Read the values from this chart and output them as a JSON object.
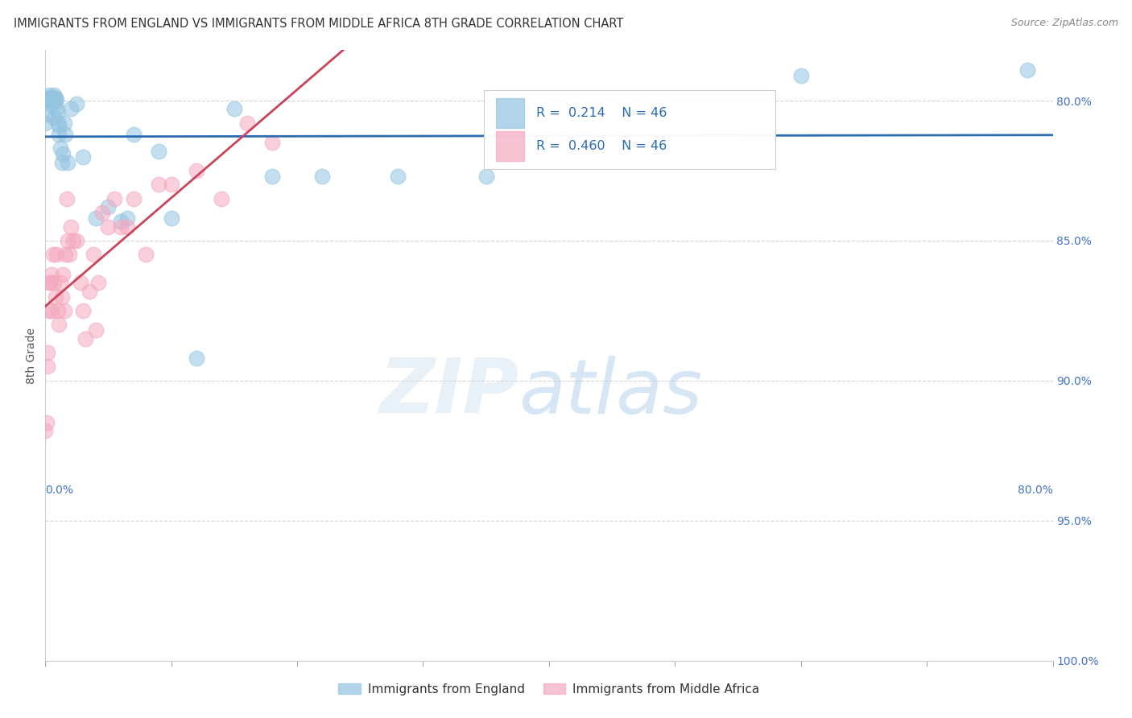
{
  "title": "IMMIGRANTS FROM ENGLAND VS IMMIGRANTS FROM MIDDLE AFRICA 8TH GRADE CORRELATION CHART",
  "source": "Source: ZipAtlas.com",
  "ylabel": "8th Grade",
  "legend_england": "Immigrants from England",
  "legend_africa": "Immigrants from Middle Africa",
  "R_england": "0.214",
  "N_england": "46",
  "R_africa": "0.460",
  "N_africa": "46",
  "color_england": "#93c4e0",
  "color_africa": "#f4a8bf",
  "trendline_england": "#2b6cb0",
  "trendline_africa": "#c9445a",
  "background": "#ffffff",
  "xlim": [
    0.0,
    0.8
  ],
  "ylim": [
    87.0,
    101.8
  ],
  "y_ticks": [
    100.0,
    95.0,
    90.0,
    85.0,
    80.0
  ],
  "y_tick_labels": [
    "100.0%",
    "95.0%",
    "90.0%",
    "85.0%",
    "80.0%"
  ],
  "england_x": [
    0.0,
    0.001,
    0.002,
    0.002,
    0.003,
    0.003,
    0.004,
    0.004,
    0.005,
    0.005,
    0.006,
    0.006,
    0.007,
    0.007,
    0.008,
    0.008,
    0.009,
    0.009,
    0.01,
    0.01,
    0.011,
    0.011,
    0.012,
    0.013,
    0.014,
    0.015,
    0.016,
    0.018,
    0.02,
    0.025,
    0.03,
    0.04,
    0.05,
    0.06,
    0.065,
    0.07,
    0.09,
    0.1,
    0.12,
    0.15,
    0.18,
    0.22,
    0.28,
    0.35,
    0.6,
    0.78
  ],
  "england_y": [
    99.2,
    99.5,
    100.1,
    100.0,
    100.2,
    100.1,
    100.1,
    99.9,
    100.1,
    100.0,
    100.1,
    100.0,
    100.2,
    99.4,
    100.1,
    100.1,
    100.0,
    99.7,
    99.2,
    99.6,
    98.8,
    99.1,
    98.3,
    97.8,
    98.1,
    99.2,
    98.8,
    97.8,
    99.7,
    99.9,
    98.0,
    95.8,
    96.2,
    95.7,
    95.8,
    98.8,
    98.2,
    95.8,
    90.8,
    99.7,
    97.3,
    97.3,
    97.3,
    97.3,
    100.9,
    101.1
  ],
  "africa_x": [
    0.0,
    0.001,
    0.002,
    0.002,
    0.003,
    0.003,
    0.004,
    0.005,
    0.005,
    0.006,
    0.007,
    0.008,
    0.009,
    0.01,
    0.011,
    0.012,
    0.013,
    0.014,
    0.015,
    0.016,
    0.017,
    0.018,
    0.019,
    0.02,
    0.022,
    0.025,
    0.028,
    0.03,
    0.032,
    0.035,
    0.038,
    0.04,
    0.042,
    0.045,
    0.05,
    0.055,
    0.06,
    0.065,
    0.07,
    0.08,
    0.09,
    0.1,
    0.12,
    0.14,
    0.16,
    0.18
  ],
  "africa_y": [
    88.2,
    88.5,
    90.5,
    91.0,
    92.5,
    93.5,
    93.5,
    93.8,
    92.5,
    94.5,
    93.5,
    93.0,
    94.5,
    92.5,
    92.0,
    93.5,
    93.0,
    93.8,
    92.5,
    94.5,
    96.5,
    95.0,
    94.5,
    95.5,
    95.0,
    95.0,
    93.5,
    92.5,
    91.5,
    93.2,
    94.5,
    91.8,
    93.5,
    96.0,
    95.5,
    96.5,
    95.5,
    95.5,
    96.5,
    94.5,
    97.0,
    97.0,
    97.5,
    96.5,
    99.2,
    98.5
  ]
}
